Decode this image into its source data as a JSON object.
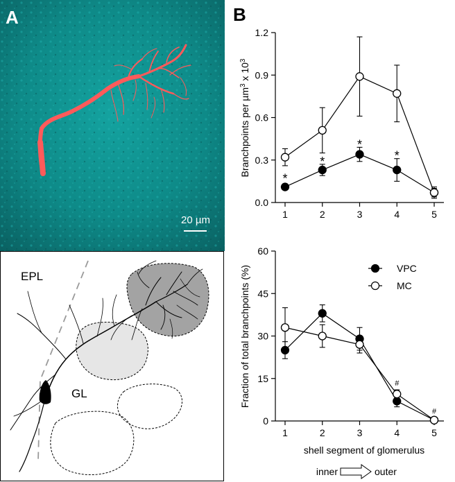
{
  "panel_a": {
    "label": "A",
    "scale_bar": "20 µm",
    "regions": [
      "EPL",
      "GL"
    ],
    "colors": {
      "background": "#0f8f8c",
      "neuron": "#ff5a5a",
      "glomerulus_dark": "#a3a3a3",
      "glomerulus_light": "#e6e6e6"
    }
  },
  "panel_b": {
    "label": "B",
    "xlabel_line1": "shell segment of glomerulus",
    "xlabel_inner": "inner",
    "xlabel_outer": "outer"
  },
  "chart_data": [
    {
      "type": "line",
      "ylabel_main": "Branchpoints per µm",
      "ylabel_exp1": "3",
      "ylabel_mid": " x 10",
      "ylabel_exp2": "3",
      "x": [
        1,
        2,
        3,
        4,
        5
      ],
      "xlim": [
        0.8,
        5.2
      ],
      "ylim": [
        0,
        1.2
      ],
      "yticks": [
        "0.0",
        "0.3",
        "0.6",
        "0.9",
        "1.2"
      ],
      "yticks_values": [
        0,
        0.3,
        0.6,
        0.9,
        1.2
      ],
      "series": [
        {
          "key": "VPC",
          "fill": "#000000",
          "values": [
            0.11,
            0.23,
            0.34,
            0.23,
            0.07
          ],
          "err": [
            0.02,
            0.04,
            0.05,
            0.08,
            0.03
          ]
        },
        {
          "key": "MC",
          "fill": "#ffffff",
          "values": [
            0.32,
            0.51,
            0.89,
            0.77,
            0.07
          ],
          "err": [
            0.06,
            0.16,
            0.28,
            0.2,
            0.04
          ]
        }
      ],
      "annotations": [
        {
          "x": 1,
          "y": 0.18,
          "text": "*"
        },
        {
          "x": 2,
          "y": 0.3,
          "text": "*"
        },
        {
          "x": 3,
          "y": 0.42,
          "text": "*"
        },
        {
          "x": 4,
          "y": 0.34,
          "text": "*"
        }
      ]
    },
    {
      "type": "line",
      "ylabel": "Fraction of total branchpoints (%)",
      "x": [
        1,
        2,
        3,
        4,
        5
      ],
      "xlim": [
        0.8,
        5.2
      ],
      "ylim": [
        0,
        60
      ],
      "yticks": [
        "0",
        "15",
        "30",
        "45",
        "60"
      ],
      "yticks_values": [
        0,
        15,
        30,
        45,
        60
      ],
      "series": [
        {
          "key": "VPC",
          "name": "VPC",
          "fill": "#000000",
          "values": [
            25,
            38,
            29,
            7,
            0.3
          ],
          "err": [
            3,
            3,
            4,
            2,
            0.5
          ]
        },
        {
          "key": "MC",
          "name": "MC",
          "fill": "#ffffff",
          "values": [
            33,
            30,
            27,
            9.5,
            0.3
          ],
          "err": [
            7,
            4,
            3,
            1.5,
            0.5
          ]
        }
      ],
      "annotations": [
        {
          "x": 4,
          "y": 13.5,
          "text": "#"
        },
        {
          "x": 5,
          "y": 3.5,
          "text": "#"
        }
      ],
      "legend_position": "top-right"
    }
  ]
}
